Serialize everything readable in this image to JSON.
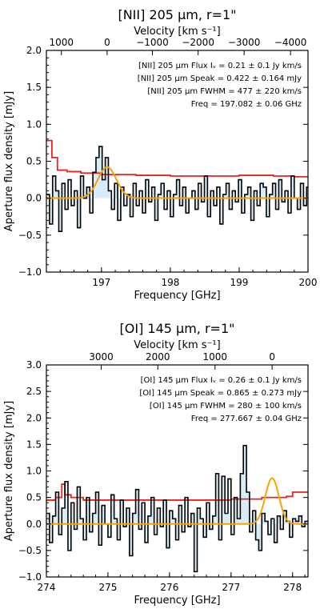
{
  "chart_data": [
    {
      "type": "line",
      "title": "[NII] 205 μm, r=1\"",
      "xlabel": "Frequency [GHz]",
      "ylabel": "Aperture flux density [mJy]",
      "top_xlabel": "Velocity [km s⁻¹]",
      "xlim": [
        196.2,
        200.0
      ],
      "ylim": [
        -1.0,
        2.0
      ],
      "x_ticks": [
        197,
        198,
        199,
        200
      ],
      "x_tick_labels": [
        "197",
        "198",
        "199",
        "200"
      ],
      "y_ticks": [
        -1.0,
        -0.5,
        0.0,
        0.5,
        1.0,
        1.5,
        2.0
      ],
      "y_tick_labels": [
        "−1.0",
        "−0.5",
        "0.0",
        "0.5",
        "1.0",
        "1.5",
        "2.0"
      ],
      "top_ticks": [
        {
          "freq": 196.418,
          "label": "1000"
        },
        {
          "freq": 197.082,
          "label": "0"
        },
        {
          "freq": 197.74,
          "label": "−1000"
        },
        {
          "freq": 198.404,
          "label": "−2000"
        },
        {
          "freq": 199.072,
          "label": "−3000"
        },
        {
          "freq": 199.746,
          "label": "−4000"
        }
      ],
      "annotations": [
        "[NII] 205 μm Flux Iᵥ = 0.21 ± 0.1 Jy km/s",
        "[NII] 205 μm Speak = 0.422 ± 0.164 mJy",
        "[NII] 205 μm FWHM = 477 ± 220 km/s",
        "Freq = 197.082 ± 0.06 GHz"
      ],
      "gauss": {
        "center": 197.082,
        "peak": 0.422,
        "fwhm_ghz": 0.314
      },
      "noise": {
        "x": [
          196.2,
          196.28,
          196.36,
          196.5,
          196.7,
          197.0,
          197.5,
          198.0,
          198.5,
          199.0,
          199.5,
          199.8,
          200.0
        ],
        "y": [
          0.78,
          0.55,
          0.38,
          0.36,
          0.34,
          0.32,
          0.31,
          0.3,
          0.3,
          0.31,
          0.3,
          0.29,
          0.3
        ]
      },
      "spectrum": {
        "x0": 196.2,
        "dx": 0.045,
        "y": [
          0.05,
          -0.35,
          0.3,
          0.1,
          -0.45,
          0.2,
          -0.15,
          0.25,
          -0.1,
          0.1,
          -0.4,
          0.3,
          0.0,
          0.15,
          -0.2,
          0.35,
          0.55,
          0.7,
          0.25,
          0.55,
          0.1,
          -0.15,
          0.2,
          -0.3,
          0.15,
          -0.1,
          0.05,
          -0.25,
          0.2,
          -0.1,
          0.1,
          -0.2,
          0.25,
          -0.05,
          0.15,
          -0.3,
          0.05,
          0.2,
          -0.15,
          0.1,
          -0.25,
          0.05,
          0.25,
          -0.1,
          0.15,
          -0.2,
          0.0,
          0.1,
          -0.15,
          0.2,
          -0.05,
          0.3,
          -0.25,
          0.1,
          -0.1,
          0.15,
          -0.35,
          0.05,
          0.2,
          -0.15,
          0.1,
          -0.05,
          0.25,
          -0.2,
          0.05,
          0.15,
          -0.3,
          0.1,
          -0.1,
          0.2,
          0.15,
          -0.25,
          0.05,
          0.2,
          -0.15,
          0.25,
          -0.05,
          0.1,
          -0.2,
          0.3,
          0.0,
          -0.15,
          0.2,
          -0.1,
          0.15
        ]
      }
    },
    {
      "type": "line",
      "title": "[OI] 145 μm, r=1\"",
      "xlabel": "Frequency [GHz]",
      "ylabel": "Aperture flux density [mJy]",
      "top_xlabel": "Velocity [km s⁻¹]",
      "xlim": [
        274.0,
        278.25
      ],
      "ylim": [
        -1.0,
        3.0
      ],
      "x_ticks": [
        274,
        275,
        276,
        277,
        278
      ],
      "x_tick_labels": [
        "274",
        "275",
        "276",
        "277",
        "278"
      ],
      "y_ticks": [
        -1.0,
        -0.5,
        0.0,
        0.5,
        1.0,
        1.5,
        2.0,
        2.5,
        3.0
      ],
      "y_tick_labels": [
        "−1.0",
        "−0.5",
        "0.0",
        "0.5",
        "1.0",
        "1.5",
        "2.0",
        "2.5",
        "3.0"
      ],
      "top_ticks": [
        {
          "freq": 274.89,
          "label": "3000"
        },
        {
          "freq": 275.81,
          "label": "2000"
        },
        {
          "freq": 276.74,
          "label": "1000"
        },
        {
          "freq": 277.667,
          "label": "0"
        }
      ],
      "annotations": [
        "[OI] 145 μm Flux Iᵥ = 0.26 ± 0.1 Jy km/s",
        "[OI] 145 μm Speak = 0.865 ± 0.273 mJy",
        "[OI] 145 μm FWHM = 280 ± 100 km/s",
        "Freq = 277.667 ± 0.04 GHz"
      ],
      "gauss": {
        "center": 277.667,
        "peak": 0.865,
        "fwhm_ghz": 0.259
      },
      "noise": {
        "x": [
          274.0,
          274.15,
          274.25,
          274.3,
          274.4,
          274.6,
          275.0,
          275.5,
          276.0,
          276.5,
          277.0,
          277.5,
          277.9,
          278.0,
          278.25
        ],
        "y": [
          0.45,
          0.5,
          0.75,
          0.55,
          0.5,
          0.45,
          0.45,
          0.45,
          0.45,
          0.45,
          0.47,
          0.5,
          0.52,
          0.6,
          0.6
        ]
      },
      "spectrum": {
        "x0": 274.0,
        "dx": 0.05,
        "y": [
          0.2,
          -0.35,
          0.15,
          0.6,
          -0.2,
          0.3,
          0.8,
          -0.5,
          0.4,
          -0.1,
          0.7,
          0.1,
          -0.3,
          0.5,
          -0.15,
          0.2,
          0.6,
          -0.4,
          0.35,
          0.0,
          -0.25,
          0.55,
          0.1,
          -0.3,
          0.45,
          -0.05,
          0.3,
          -0.6,
          0.2,
          0.65,
          -0.1,
          0.4,
          -0.35,
          0.15,
          0.5,
          -0.2,
          0.3,
          -0.05,
          0.45,
          -0.45,
          0.25,
          0.1,
          -0.3,
          0.35,
          -0.15,
          0.5,
          -0.05,
          0.2,
          -0.9,
          0.3,
          0.1,
          -0.25,
          0.4,
          -0.1,
          0.15,
          0.95,
          -0.3,
          0.9,
          0.2,
          0.85,
          -0.2,
          0.5,
          0.1,
          0.95,
          1.48,
          0.6,
          -0.15,
          0.25,
          -0.3,
          -0.5,
          0.2,
          0.05,
          -0.2,
          0.1,
          -0.35,
          0.15,
          -0.1,
          0.25,
          0.05,
          -0.25,
          0.1,
          0.05,
          0.15,
          -0.05,
          0.05
        ]
      }
    }
  ]
}
